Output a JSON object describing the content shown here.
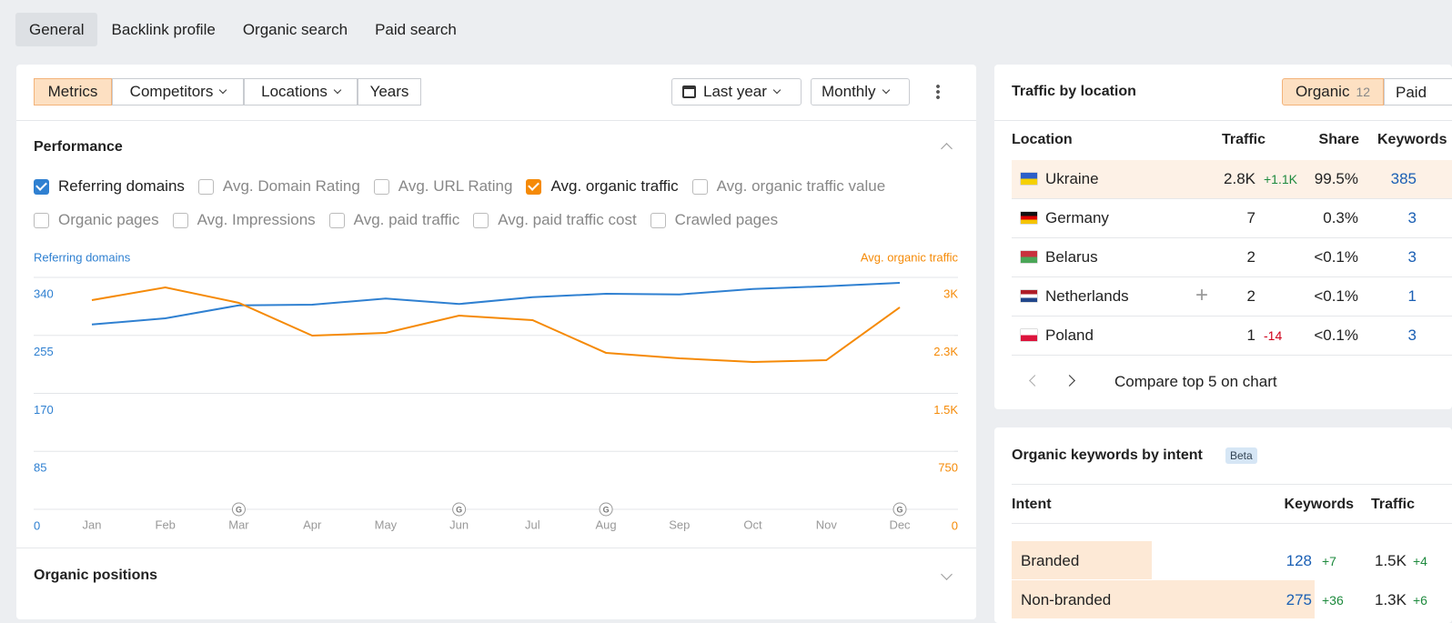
{
  "tabs": [
    "General",
    "Backlink profile",
    "Organic search",
    "Paid search"
  ],
  "toolbar": {
    "view_buttons": [
      "Metrics",
      "Competitors",
      "Locations",
      "Years"
    ],
    "period": "Last year",
    "interval": "Monthly"
  },
  "performance": {
    "title": "Performance",
    "metrics": [
      {
        "label": "Referring domains",
        "checked": true
      },
      {
        "label": "Avg. Domain Rating",
        "checked": false
      },
      {
        "label": "Avg. URL Rating",
        "checked": false
      },
      {
        "label": "Avg. organic traffic",
        "checked": true
      },
      {
        "label": "Avg. organic traffic value",
        "checked": false
      },
      {
        "label": "Organic pages",
        "checked": false
      },
      {
        "label": "Avg. Impressions",
        "checked": false
      },
      {
        "label": "Avg. paid traffic",
        "checked": false
      },
      {
        "label": "Avg. paid traffic cost",
        "checked": false
      },
      {
        "label": "Crawled pages",
        "checked": false
      }
    ]
  },
  "chart_data": {
    "type": "line",
    "categories": [
      "Jan",
      "Feb",
      "Mar",
      "Apr",
      "May",
      "Jun",
      "Jul",
      "Aug",
      "Sep",
      "Oct",
      "Nov",
      "Dec"
    ],
    "series": [
      {
        "name": "Referring domains",
        "color": "#2f80d1",
        "values": [
          271,
          280,
          299,
          300,
          309,
          301,
          311,
          316,
          315,
          323,
          327,
          332
        ]
      },
      {
        "name": "Avg. organic traffic",
        "color": "#f58a07",
        "axis": "y2",
        "values": [
          2706,
          2871,
          2671,
          2247,
          2282,
          2506,
          2447,
          2024,
          1953,
          1906,
          1929,
          2612
        ]
      }
    ],
    "ylim": [
      0,
      340
    ],
    "yticks": [
      0,
      85,
      170,
      255,
      340
    ],
    "y2lim": [
      0,
      3000
    ],
    "y2ticks": [
      0,
      750,
      {
        "value": 1500,
        "label": "1.5K"
      },
      {
        "value": 2250,
        "label": "2.3K"
      },
      {
        "value": 3000,
        "label": "3K"
      }
    ],
    "grid": true,
    "update_markers": [
      {
        "x": "Mar",
        "label": "G"
      },
      {
        "x": "Jun",
        "label": "G"
      },
      {
        "x": "Aug",
        "label": "G"
      },
      {
        "x": "Dec",
        "label": "G"
      }
    ]
  },
  "organic_positions": {
    "title": "Organic positions"
  },
  "traffic_by_location": {
    "title": "Traffic by location",
    "tabs": [
      {
        "label": "Organic",
        "count": 12
      },
      {
        "label": "Paid"
      }
    ],
    "columns": [
      "Location",
      "Traffic",
      "Share",
      "Keywords"
    ],
    "rows": [
      {
        "location": "Ukraine",
        "traffic": "2.8K",
        "change": "+1.1K",
        "share": "99.5%",
        "keywords": 385
      },
      {
        "location": "Germany",
        "traffic": 7,
        "share": "0.3%",
        "keywords": 3
      },
      {
        "location": "Belarus",
        "traffic": 2,
        "share": "<0.1%",
        "keywords": 3
      },
      {
        "location": "Netherlands",
        "traffic": 2,
        "share": "<0.1%",
        "keywords": 1
      },
      {
        "location": "Poland",
        "traffic": 1,
        "change": "-14",
        "share": "<0.1%",
        "keywords": 3
      }
    ],
    "footer": "Compare top 5 on chart"
  },
  "keywords_by_intent": {
    "title": "Organic keywords by intent",
    "badge": "Beta",
    "columns": [
      "Intent",
      "Keywords",
      "Traffic"
    ],
    "rows": [
      {
        "intent": "Branded",
        "keywords": 128,
        "keywords_change": "+7",
        "traffic": "1.5K",
        "traffic_change": "+4"
      },
      {
        "intent": "Non-branded",
        "keywords": 275,
        "keywords_change": "+36",
        "traffic": "1.3K",
        "traffic_change": "+6"
      }
    ]
  }
}
